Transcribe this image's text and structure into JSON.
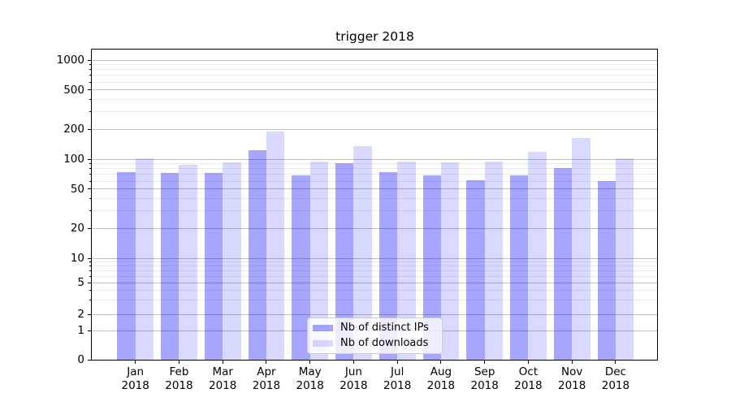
{
  "chart_data": {
    "type": "bar",
    "title": "trigger 2018",
    "categories": [
      "Jan",
      "Feb",
      "Mar",
      "Apr",
      "May",
      "Jun",
      "Jul",
      "Aug",
      "Sep",
      "Oct",
      "Nov",
      "Dec"
    ],
    "x_axis": {
      "year": "2018"
    },
    "y_axis": {
      "scale": "symlog",
      "major_ticks": [
        0,
        1,
        2,
        5,
        10,
        20,
        50,
        100,
        200,
        500,
        1000
      ],
      "minor_ticks": [
        3,
        4,
        6,
        7,
        8,
        9,
        30,
        40,
        60,
        70,
        80,
        90,
        300,
        400,
        600,
        700,
        800,
        900
      ],
      "range": [
        0,
        1000
      ]
    },
    "series": [
      {
        "name": "Nb of distinct IPs",
        "color": "#0000ff",
        "alpha": 0.35,
        "values": [
          74,
          73,
          72,
          122,
          68,
          91,
          74,
          68,
          61,
          69,
          82,
          60
        ]
      },
      {
        "name": "Nb of downloads",
        "color": "#0000ff",
        "alpha": 0.15,
        "values": [
          101,
          88,
          92,
          190,
          94,
          135,
          95,
          92,
          94,
          119,
          162,
          102
        ]
      }
    ],
    "legend": {
      "position": "lower-center"
    },
    "colors": {
      "major_grid": "#c0c0c0",
      "minor_grid": "#ebebeb",
      "spine": "#000000",
      "text": "#000000",
      "background": "#ffffff"
    }
  }
}
